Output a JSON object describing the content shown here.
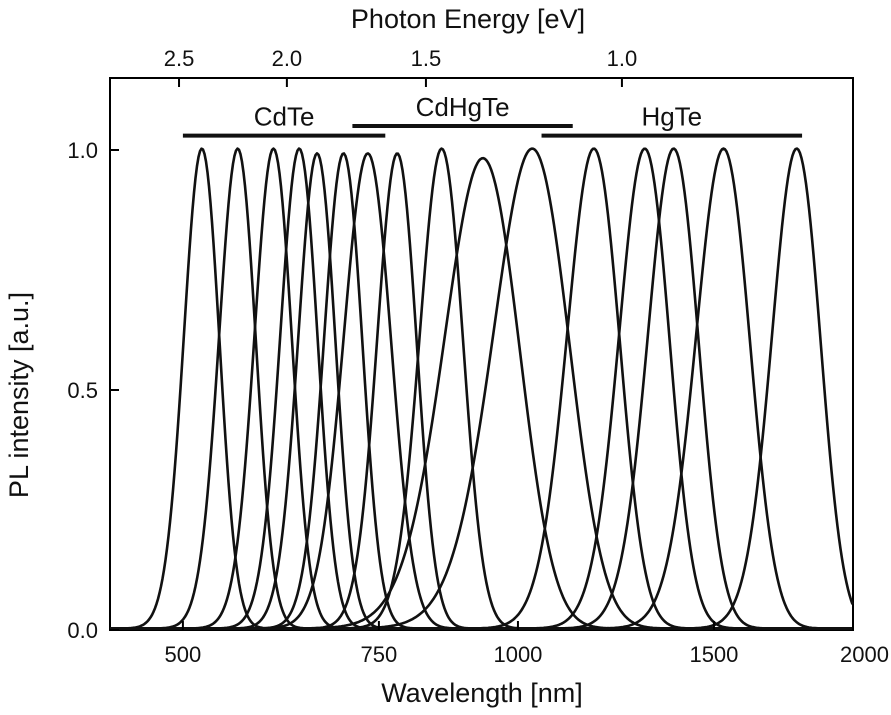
{
  "chart_data": {
    "type": "line",
    "xlabel": "Wavelength [nm]",
    "x2label": "Photon Energy [eV]",
    "ylabel": "PL intensity [a.u.]",
    "x_scale": "log",
    "xlim": [
      430,
      2000
    ],
    "ylim": [
      0,
      1.15
    ],
    "x_ticks": [
      {
        "value": 500,
        "label": "500"
      },
      {
        "value": 750,
        "label": "750"
      },
      {
        "value": 1000,
        "label": "1000"
      },
      {
        "value": 1500,
        "label": "1500"
      },
      {
        "value": 2000,
        "label": "2000"
      }
    ],
    "x2_ticks": [
      {
        "energy_ev": 2.5,
        "label": "2.5"
      },
      {
        "energy_ev": 2.0,
        "label": "2.0"
      },
      {
        "energy_ev": 1.5,
        "label": "1.5"
      },
      {
        "energy_ev": 1.0,
        "label": "1.0"
      }
    ],
    "y_ticks": [
      {
        "value": 0.0,
        "label": "0.0"
      },
      {
        "value": 0.5,
        "label": "0.5"
      },
      {
        "value": 1.0,
        "label": "1.0"
      }
    ],
    "groups": [
      {
        "label": "CdTe",
        "x_start": 500,
        "x_end": 760,
        "y": 1.03
      },
      {
        "label": "CdHgTe",
        "x_start": 710,
        "x_end": 1120,
        "y": 1.05
      },
      {
        "label": "HgTe",
        "x_start": 1050,
        "x_end": 1800,
        "y": 1.03
      }
    ],
    "series": [
      {
        "peak": 520,
        "fwhm": 45,
        "height": 1.0
      },
      {
        "peak": 560,
        "fwhm": 50,
        "height": 1.0
      },
      {
        "peak": 603,
        "fwhm": 55,
        "height": 1.0
      },
      {
        "peak": 636,
        "fwhm": 58,
        "height": 1.0
      },
      {
        "peak": 660,
        "fwhm": 60,
        "height": 0.99
      },
      {
        "peak": 697,
        "fwhm": 65,
        "height": 0.99
      },
      {
        "peak": 733,
        "fwhm": 85,
        "height": 0.99
      },
      {
        "peak": 779,
        "fwhm": 75,
        "height": 0.99
      },
      {
        "peak": 854,
        "fwhm": 90,
        "height": 1.0
      },
      {
        "peak": 930,
        "fwhm": 170,
        "height": 0.98
      },
      {
        "peak": 1030,
        "fwhm": 190,
        "height": 1.0
      },
      {
        "peak": 1170,
        "fwhm": 150,
        "height": 1.0
      },
      {
        "peak": 1300,
        "fwhm": 160,
        "height": 1.0
      },
      {
        "peak": 1380,
        "fwhm": 170,
        "height": 1.0
      },
      {
        "peak": 1530,
        "fwhm": 200,
        "height": 1.0
      },
      {
        "peak": 1780,
        "fwhm": 210,
        "height": 1.0
      }
    ]
  }
}
